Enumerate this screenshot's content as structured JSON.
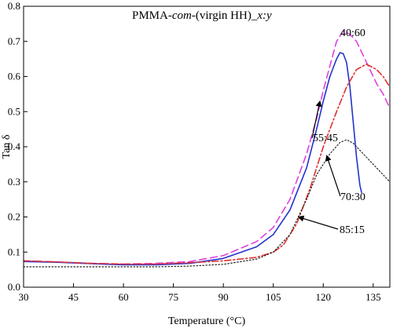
{
  "chart_data": {
    "type": "line",
    "title": "PMMA-com-(virgin HH)_x:y",
    "title_parts": {
      "pre": "PMMA-",
      "italic1": "com",
      "mid": "-(virgin HH)_",
      "italic2": "x:y"
    },
    "xlabel": "Temperature (°C)",
    "ylabel": "Tan δ",
    "xlim": [
      30,
      140
    ],
    "ylim": [
      0.0,
      0.8
    ],
    "x_ticks": [
      30,
      45,
      60,
      75,
      90,
      105,
      120,
      135
    ],
    "x_tick_labels": [
      "30",
      "45",
      "60",
      "75",
      "90",
      "105",
      "120",
      "135"
    ],
    "y_ticks": [
      0.0,
      0.1,
      0.2,
      0.3,
      0.4,
      0.5,
      0.6,
      0.7,
      0.8
    ],
    "y_tick_labels": [
      "0.0",
      "0.1",
      "0.2",
      "0.3",
      "0.4",
      "0.5",
      "0.6",
      "0.7",
      "0.8"
    ],
    "grid": false,
    "series": [
      {
        "name": "40:60",
        "color": "#e040e0",
        "style": "dashed",
        "points": [
          [
            30,
            0.075
          ],
          [
            40,
            0.072
          ],
          [
            50,
            0.068
          ],
          [
            60,
            0.066
          ],
          [
            70,
            0.068
          ],
          [
            80,
            0.073
          ],
          [
            90,
            0.09
          ],
          [
            100,
            0.13
          ],
          [
            105,
            0.17
          ],
          [
            110,
            0.25
          ],
          [
            115,
            0.38
          ],
          [
            118,
            0.48
          ],
          [
            120,
            0.56
          ],
          [
            122,
            0.63
          ],
          [
            124,
            0.7
          ],
          [
            126,
            0.73
          ],
          [
            128,
            0.72
          ],
          [
            130,
            0.7
          ],
          [
            132,
            0.66
          ],
          [
            134,
            0.62
          ],
          [
            136,
            0.58
          ],
          [
            138,
            0.55
          ],
          [
            140,
            0.51
          ]
        ]
      },
      {
        "name": "55:45",
        "color": "#2233cc",
        "style": "solid",
        "points": [
          [
            30,
            0.073
          ],
          [
            40,
            0.071
          ],
          [
            50,
            0.067
          ],
          [
            60,
            0.064
          ],
          [
            70,
            0.064
          ],
          [
            80,
            0.068
          ],
          [
            90,
            0.082
          ],
          [
            100,
            0.115
          ],
          [
            105,
            0.15
          ],
          [
            110,
            0.22
          ],
          [
            115,
            0.34
          ],
          [
            118,
            0.45
          ],
          [
            120,
            0.53
          ],
          [
            122,
            0.6
          ],
          [
            124,
            0.65
          ],
          [
            125,
            0.668
          ],
          [
            126,
            0.665
          ],
          [
            127,
            0.64
          ],
          [
            128,
            0.57
          ],
          [
            129,
            0.47
          ],
          [
            130,
            0.37
          ],
          [
            131,
            0.29
          ],
          [
            131.5,
            0.27
          ]
        ]
      },
      {
        "name": "70:30",
        "color": "#e03030",
        "style": "dashdot",
        "points": [
          [
            30,
            0.075
          ],
          [
            40,
            0.072
          ],
          [
            50,
            0.068
          ],
          [
            60,
            0.066
          ],
          [
            70,
            0.066
          ],
          [
            80,
            0.07
          ],
          [
            90,
            0.075
          ],
          [
            100,
            0.085
          ],
          [
            105,
            0.1
          ],
          [
            108,
            0.12
          ],
          [
            112,
            0.18
          ],
          [
            116,
            0.28
          ],
          [
            120,
            0.4
          ],
          [
            124,
            0.5
          ],
          [
            127,
            0.57
          ],
          [
            130,
            0.62
          ],
          [
            133,
            0.635
          ],
          [
            136,
            0.62
          ],
          [
            138,
            0.6
          ],
          [
            140,
            0.57
          ]
        ]
      },
      {
        "name": "85:15",
        "color": "#222222",
        "style": "dotted",
        "points": [
          [
            30,
            0.058
          ],
          [
            40,
            0.058
          ],
          [
            50,
            0.058
          ],
          [
            60,
            0.058
          ],
          [
            70,
            0.058
          ],
          [
            80,
            0.06
          ],
          [
            90,
            0.065
          ],
          [
            100,
            0.08
          ],
          [
            105,
            0.1
          ],
          [
            110,
            0.15
          ],
          [
            115,
            0.25
          ],
          [
            118,
            0.32
          ],
          [
            122,
            0.38
          ],
          [
            125,
            0.412
          ],
          [
            127,
            0.42
          ],
          [
            129,
            0.41
          ],
          [
            132,
            0.38
          ],
          [
            135,
            0.35
          ],
          [
            138,
            0.32
          ],
          [
            140,
            0.3
          ]
        ]
      }
    ],
    "annotations": [
      {
        "text": "40:60",
        "series": "40:60"
      },
      {
        "text": "55:45",
        "series": "55:45"
      },
      {
        "text": "70:30",
        "series": "70:30"
      },
      {
        "text": "85:15",
        "series": "85:15"
      }
    ]
  }
}
